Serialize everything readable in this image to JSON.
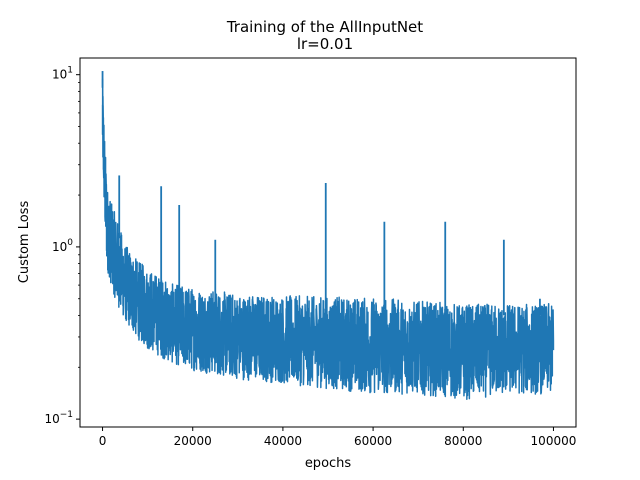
{
  "chart_data": {
    "type": "line",
    "title": "Training of the AllInputNet",
    "subtitle": "lr=0.01",
    "xlabel": "epochs",
    "ylabel": "Custom Loss",
    "xlim": [
      -5000,
      105000
    ],
    "ylim": [
      0.09,
      12.5
    ],
    "yscale": "log",
    "grid": false,
    "legend": "none",
    "line_color": "#1f77b4",
    "x_ticks": [
      {
        "value": 0,
        "label": "0"
      },
      {
        "value": 20000,
        "label": "20000"
      },
      {
        "value": 40000,
        "label": "40000"
      },
      {
        "value": 60000,
        "label": "60000"
      },
      {
        "value": 80000,
        "label": "80000"
      },
      {
        "value": 100000,
        "label": "100000"
      }
    ],
    "y_ticks": [
      {
        "value": 0.1,
        "base": "10",
        "exp": "−1"
      },
      {
        "value": 1,
        "base": "10",
        "exp": "0"
      },
      {
        "value": 10,
        "base": "10",
        "exp": "1"
      }
    ],
    "series": [
      {
        "x": [
          0,
          500,
          1000,
          2000,
          3000,
          5000,
          7500,
          10000,
          15000,
          20000,
          30000,
          40000,
          50000,
          60000,
          70000,
          80000,
          90000,
          100000
        ],
        "upper": [
          10.5,
          4.5,
          2.4,
          1.9,
          1.6,
          1.1,
          0.9,
          0.8,
          0.65,
          0.62,
          0.57,
          0.56,
          0.55,
          0.55,
          0.52,
          0.5,
          0.5,
          0.5
        ],
        "lower": [
          3.0,
          1.2,
          0.7,
          0.55,
          0.45,
          0.35,
          0.28,
          0.24,
          0.2,
          0.18,
          0.16,
          0.15,
          0.14,
          0.13,
          0.13,
          0.12,
          0.13,
          0.13
        ],
        "spikes": [
          {
            "x": 0,
            "y": 10.5
          },
          {
            "x": 3700,
            "y": 2.6
          },
          {
            "x": 13000,
            "y": 2.25
          },
          {
            "x": 17000,
            "y": 1.75
          },
          {
            "x": 25000,
            "y": 1.1
          },
          {
            "x": 49500,
            "y": 2.35
          },
          {
            "x": 62500,
            "y": 1.4
          },
          {
            "x": 76000,
            "y": 1.4
          },
          {
            "x": 89000,
            "y": 1.1
          },
          {
            "x": 97000,
            "y": 0.5
          }
        ]
      }
    ]
  }
}
